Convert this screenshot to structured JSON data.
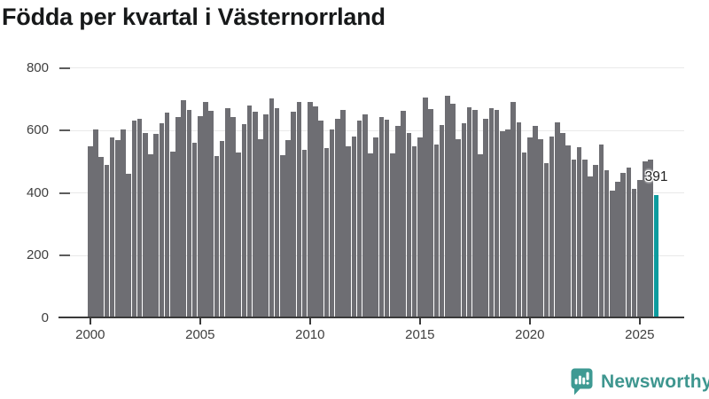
{
  "title": "Födda per kvartal i Västernorrland",
  "annotation": {
    "value_label": "391"
  },
  "branding": {
    "logo_text": "Newsworthy"
  },
  "colors": {
    "bar": "#6e6e73",
    "highlight_bar": "#0d9b9e",
    "gridline": "#e9e9e9",
    "axis": "#3a3a3a",
    "axis_text": "#3f3f3f",
    "logo_teal": "#3e968f",
    "title_text": "#17191a"
  },
  "chart_data": {
    "type": "bar",
    "title": "Födda per kvartal i Västernorrland",
    "xlabel": "",
    "ylabel": "",
    "ylim": [
      0,
      800
    ],
    "grid": true,
    "legend": "none",
    "y_axis": {
      "max": 800,
      "ticks": [
        0,
        200,
        400,
        600,
        800
      ]
    },
    "x_axis": {
      "tick_labels": [
        "2000",
        "2005",
        "2010",
        "2015",
        "2020",
        "2025"
      ]
    },
    "highlight": {
      "index": 103,
      "value": 391,
      "label": "391",
      "color": "#0d9b9e"
    },
    "categories": [
      "2000-K1",
      "2000-K2",
      "2000-K3",
      "2000-K4",
      "2001-K1",
      "2001-K2",
      "2001-K3",
      "2001-K4",
      "2002-K1",
      "2002-K2",
      "2002-K3",
      "2002-K4",
      "2003-K1",
      "2003-K2",
      "2003-K3",
      "2003-K4",
      "2004-K1",
      "2004-K2",
      "2004-K3",
      "2004-K4",
      "2005-K1",
      "2005-K2",
      "2005-K3",
      "2005-K4",
      "2006-K1",
      "2006-K2",
      "2006-K3",
      "2006-K4",
      "2007-K1",
      "2007-K2",
      "2007-K3",
      "2007-K4",
      "2008-K1",
      "2008-K2",
      "2008-K3",
      "2008-K4",
      "2009-K1",
      "2009-K2",
      "2009-K3",
      "2009-K4",
      "2010-K1",
      "2010-K2",
      "2010-K3",
      "2010-K4",
      "2011-K1",
      "2011-K2",
      "2011-K3",
      "2011-K4",
      "2012-K1",
      "2012-K2",
      "2012-K3",
      "2012-K4",
      "2013-K1",
      "2013-K2",
      "2013-K3",
      "2013-K4",
      "2014-K1",
      "2014-K2",
      "2014-K3",
      "2014-K4",
      "2015-K1",
      "2015-K2",
      "2015-K3",
      "2015-K4",
      "2016-K1",
      "2016-K2",
      "2016-K3",
      "2016-K4",
      "2017-K1",
      "2017-K2",
      "2017-K3",
      "2017-K4",
      "2018-K1",
      "2018-K2",
      "2018-K3",
      "2018-K4",
      "2019-K1",
      "2019-K2",
      "2019-K3",
      "2019-K4",
      "2020-K1",
      "2020-K2",
      "2020-K3",
      "2020-K4",
      "2021-K1",
      "2021-K2",
      "2021-K3",
      "2021-K4",
      "2022-K1",
      "2022-K2",
      "2022-K3",
      "2022-K4",
      "2023-K1",
      "2023-K2",
      "2023-K3",
      "2023-K4",
      "2024-K1",
      "2024-K2",
      "2024-K3",
      "2024-K4",
      "2025-K1",
      "2025-K2",
      "2025-K3",
      "2025-K4"
    ],
    "values": [
      547,
      602,
      514,
      489,
      577,
      567,
      601,
      460,
      630,
      636,
      590,
      522,
      586,
      622,
      655,
      530,
      640,
      694,
      664,
      560,
      645,
      688,
      660,
      515,
      565,
      669,
      641,
      528,
      619,
      678,
      658,
      569,
      650,
      701,
      670,
      519,
      568,
      658,
      688,
      536,
      688,
      675,
      631,
      541,
      601,
      635,
      664,
      548,
      580,
      631,
      649,
      524,
      575,
      640,
      632,
      524,
      613,
      660,
      591,
      548,
      576,
      703,
      666,
      554,
      616,
      708,
      683,
      570,
      620,
      672,
      663,
      523,
      635,
      670,
      663,
      596,
      602,
      688,
      625,
      529,
      576,
      612,
      570,
      493,
      580,
      623,
      589,
      550,
      506,
      546,
      505,
      452,
      489,
      554,
      472,
      405,
      433,
      462,
      479,
      410,
      440,
      498,
      505,
      391
    ]
  }
}
